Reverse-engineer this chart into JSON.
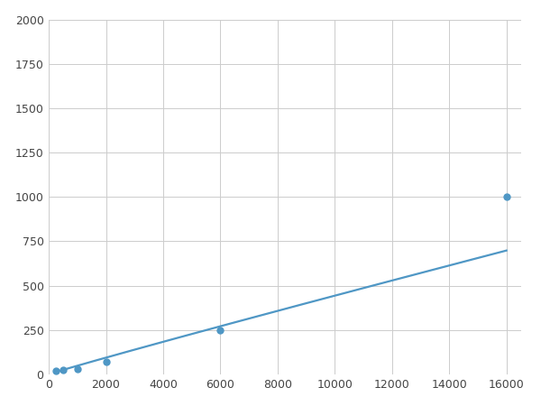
{
  "x": [
    250,
    500,
    1000,
    2000,
    6000,
    16000
  ],
  "y": [
    20,
    25,
    30,
    70,
    250,
    1000
  ],
  "line_color": "#4f97c5",
  "marker_color": "#4f97c5",
  "marker_size": 5,
  "line_width": 1.6,
  "xlim": [
    0,
    16500
  ],
  "ylim": [
    0,
    2000
  ],
  "xticks": [
    0,
    2000,
    4000,
    6000,
    8000,
    10000,
    12000,
    14000,
    16000
  ],
  "yticks": [
    0,
    250,
    500,
    750,
    1000,
    1250,
    1500,
    1750,
    2000
  ],
  "grid": true,
  "background_color": "#ffffff",
  "figure_background": "#ffffff"
}
